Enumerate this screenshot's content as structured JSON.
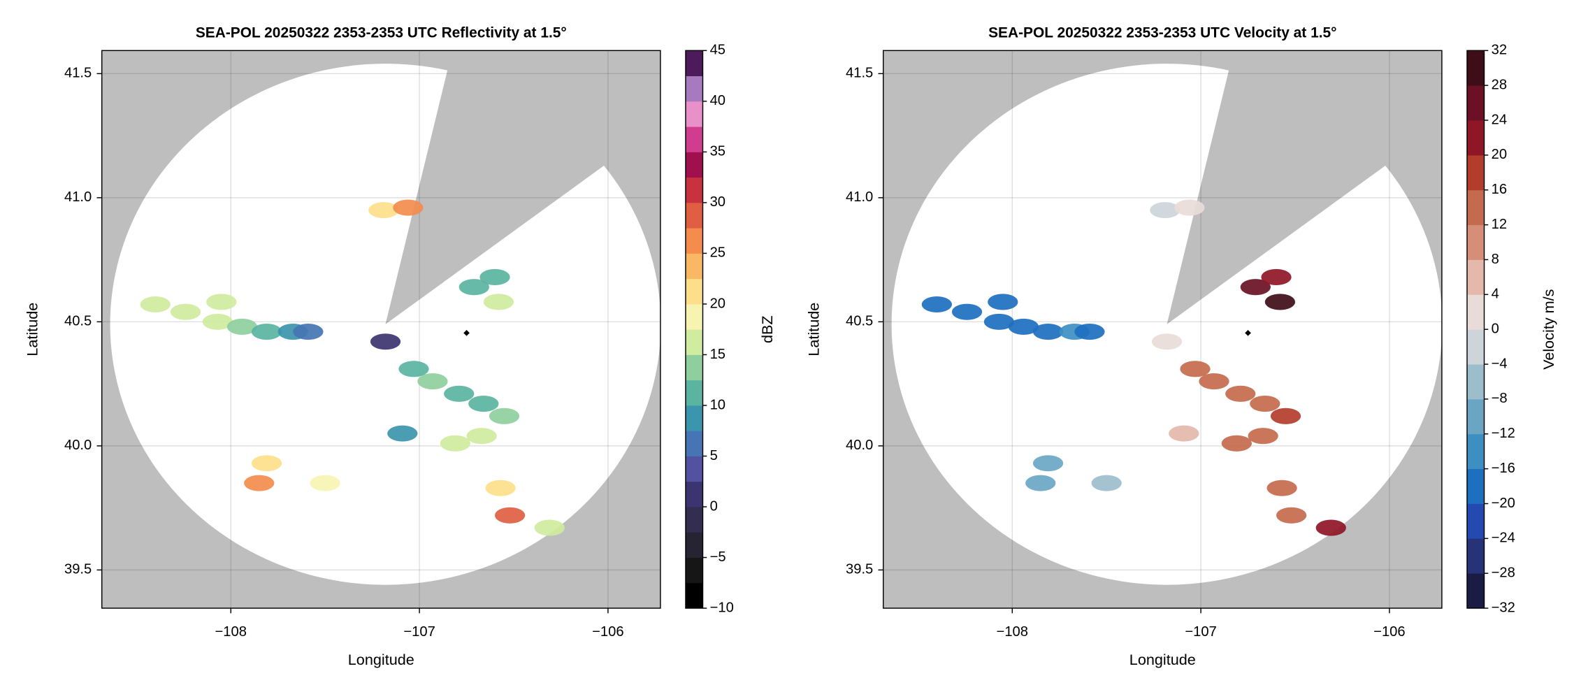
{
  "chart_data": [
    {
      "type": "radar",
      "title": "SEA-POL 20250322 2353-2353 UTC Reflectivity at 1.5°",
      "xlabel": "Longitude",
      "ylabel": "Latitude",
      "xlim": [
        -108.684,
        -105.722
      ],
      "ylim": [
        39.346,
        41.593
      ],
      "xticks": [
        {
          "value": -108,
          "label": "−108"
        },
        {
          "value": -107,
          "label": "−107"
        },
        {
          "value": -106,
          "label": "−106"
        }
      ],
      "yticks": [
        {
          "value": 39.5,
          "label": "39.5"
        },
        {
          "value": 40,
          "label": "40.0"
        },
        {
          "value": 40.5,
          "label": "40.5"
        },
        {
          "value": 41,
          "label": "41.0"
        },
        {
          "value": 41.5,
          "label": "41.5"
        }
      ],
      "grid": true,
      "background": "#bebebe",
      "radar": {
        "lon": -107.18,
        "lat": 40.49,
        "range_lon": 1.46,
        "range_lat": 1.05,
        "blocked_azimuth": [
          13,
          52.5
        ]
      },
      "marker": {
        "lon": -106.75,
        "lat": 40.455
      },
      "echoes": [
        {
          "lon": -108.4,
          "lat": 40.57,
          "value": 16
        },
        {
          "lon": -108.24,
          "lat": 40.54,
          "value": 17
        },
        {
          "lon": -108.05,
          "lat": 40.58,
          "value": 17
        },
        {
          "lon": -108.07,
          "lat": 40.5,
          "value": 15
        },
        {
          "lon": -107.94,
          "lat": 40.48,
          "value": 14
        },
        {
          "lon": -107.81,
          "lat": 40.46,
          "value": 12
        },
        {
          "lon": -107.67,
          "lat": 40.46,
          "value": 9
        },
        {
          "lon": -107.59,
          "lat": 40.46,
          "value": 6
        },
        {
          "lon": -107.19,
          "lat": 40.95,
          "value": 20
        },
        {
          "lon": -107.06,
          "lat": 40.96,
          "value": 26
        },
        {
          "lon": -106.71,
          "lat": 40.64,
          "value": 12
        },
        {
          "lon": -106.58,
          "lat": 40.58,
          "value": 16
        },
        {
          "lon": -106.6,
          "lat": 40.68,
          "value": 10
        },
        {
          "lon": -107.03,
          "lat": 40.31,
          "value": 10
        },
        {
          "lon": -106.93,
          "lat": 40.26,
          "value": 14
        },
        {
          "lon": -106.79,
          "lat": 40.21,
          "value": 10
        },
        {
          "lon": -106.66,
          "lat": 40.17,
          "value": 12
        },
        {
          "lon": -106.55,
          "lat": 40.12,
          "value": 14
        },
        {
          "lon": -107.09,
          "lat": 40.05,
          "value": 8
        },
        {
          "lon": -106.81,
          "lat": 40.01,
          "value": 16
        },
        {
          "lon": -106.67,
          "lat": 40.04,
          "value": 17
        },
        {
          "lon": -107.81,
          "lat": 39.93,
          "value": 22
        },
        {
          "lon": -107.85,
          "lat": 39.85,
          "value": 25
        },
        {
          "lon": -107.5,
          "lat": 39.85,
          "value": 18
        },
        {
          "lon": -106.57,
          "lat": 39.83,
          "value": 20
        },
        {
          "lon": -106.52,
          "lat": 39.72,
          "value": 28
        },
        {
          "lon": -106.31,
          "lat": 39.67,
          "value": 17
        },
        {
          "lon": -107.18,
          "lat": 40.42,
          "value": 2
        }
      ],
      "colorbar": {
        "label": "dBZ",
        "lim": [
          -10,
          45
        ],
        "ticks": [
          {
            "value": -10,
            "label": "−10"
          },
          {
            "value": -5,
            "label": "−5"
          },
          0,
          5,
          10,
          15,
          20,
          25,
          30,
          35,
          40,
          45
        ],
        "colors": [
          "#000000",
          "#161616",
          "#262433",
          "#332d4f",
          "#3c3470",
          "#5352a0",
          "#4575b4",
          "#3b95ad",
          "#5ab4a0",
          "#8fcf9d",
          "#cfeca0",
          "#f7f4b2",
          "#fddf8b",
          "#fbb864",
          "#f38c4d",
          "#e05f42",
          "#c8323e",
          "#a0104f",
          "#d13d8e",
          "#e890c8",
          "#a77ac0",
          "#4d1a5c"
        ]
      }
    },
    {
      "type": "radar",
      "title": "SEA-POL 20250322 2353-2353 UTC Velocity at 1.5°",
      "xlabel": "Longitude",
      "ylabel": "Latitude",
      "xlim": [
        -108.684,
        -105.722
      ],
      "ylim": [
        39.346,
        41.593
      ],
      "xticks": [
        {
          "value": -108,
          "label": "−108"
        },
        {
          "value": -107,
          "label": "−107"
        },
        {
          "value": -106,
          "label": "−106"
        }
      ],
      "yticks": [
        {
          "value": 39.5,
          "label": "39.5"
        },
        {
          "value": 40,
          "label": "40.0"
        },
        {
          "value": 40.5,
          "label": "40.5"
        },
        {
          "value": 41,
          "label": "41.0"
        },
        {
          "value": 41.5,
          "label": "41.5"
        }
      ],
      "grid": true,
      "background": "#bebebe",
      "radar": {
        "lon": -107.18,
        "lat": 40.49,
        "range_lon": 1.46,
        "range_lat": 1.05,
        "blocked_azimuth": [
          13,
          52.5
        ]
      },
      "marker": {
        "lon": -106.75,
        "lat": 40.455
      },
      "echoes": [
        {
          "lon": -108.4,
          "lat": 40.57,
          "value": -18
        },
        {
          "lon": -108.24,
          "lat": 40.54,
          "value": -18
        },
        {
          "lon": -108.05,
          "lat": 40.58,
          "value": -18
        },
        {
          "lon": -108.07,
          "lat": 40.5,
          "value": -20
        },
        {
          "lon": -107.94,
          "lat": 40.48,
          "value": -18
        },
        {
          "lon": -107.81,
          "lat": 40.46,
          "value": -18
        },
        {
          "lon": -107.67,
          "lat": 40.46,
          "value": -16
        },
        {
          "lon": -107.59,
          "lat": 40.46,
          "value": -18
        },
        {
          "lon": -107.19,
          "lat": 40.95,
          "value": -2
        },
        {
          "lon": -107.06,
          "lat": 40.96,
          "value": 2
        },
        {
          "lon": -106.71,
          "lat": 40.64,
          "value": 26
        },
        {
          "lon": -106.58,
          "lat": 40.58,
          "value": 28
        },
        {
          "lon": -106.6,
          "lat": 40.68,
          "value": 22
        },
        {
          "lon": -107.03,
          "lat": 40.31,
          "value": 12
        },
        {
          "lon": -106.93,
          "lat": 40.26,
          "value": 14
        },
        {
          "lon": -106.79,
          "lat": 40.21,
          "value": 12
        },
        {
          "lon": -106.66,
          "lat": 40.17,
          "value": 14
        },
        {
          "lon": -106.55,
          "lat": 40.12,
          "value": 16
        },
        {
          "lon": -107.09,
          "lat": 40.05,
          "value": 4
        },
        {
          "lon": -106.81,
          "lat": 40.01,
          "value": 12
        },
        {
          "lon": -106.67,
          "lat": 40.04,
          "value": 14
        },
        {
          "lon": -107.81,
          "lat": 39.93,
          "value": -10
        },
        {
          "lon": -107.85,
          "lat": 39.85,
          "value": -12
        },
        {
          "lon": -107.5,
          "lat": 39.85,
          "value": -8
        },
        {
          "lon": -106.57,
          "lat": 39.83,
          "value": 12
        },
        {
          "lon": -106.52,
          "lat": 39.72,
          "value": 12
        },
        {
          "lon": -106.31,
          "lat": 39.67,
          "value": 20
        },
        {
          "lon": -107.18,
          "lat": 40.42,
          "value": 0
        }
      ],
      "colorbar": {
        "label": "Velocity m/s",
        "lim": [
          -32,
          32
        ],
        "ticks": [
          {
            "value": -32,
            "label": "−32"
          },
          {
            "value": -28,
            "label": "−28"
          },
          {
            "value": -24,
            "label": "−24"
          },
          {
            "value": -20,
            "label": "−20"
          },
          {
            "value": -16,
            "label": "−16"
          },
          {
            "value": -12,
            "label": "−12"
          },
          {
            "value": -8,
            "label": "−8"
          },
          {
            "value": -4,
            "label": "−4"
          },
          0,
          4,
          8,
          12,
          16,
          20,
          24,
          28,
          32
        ],
        "colors": [
          "#1b1c45",
          "#263377",
          "#2449b0",
          "#1d6fbf",
          "#3d8fc2",
          "#6aa6c4",
          "#9cbdcb",
          "#cdd5da",
          "#e9dcd8",
          "#e4b8aa",
          "#d58e77",
          "#c46a4d",
          "#b33d2b",
          "#8f1626",
          "#6b1025",
          "#3e0d18"
        ]
      }
    }
  ]
}
